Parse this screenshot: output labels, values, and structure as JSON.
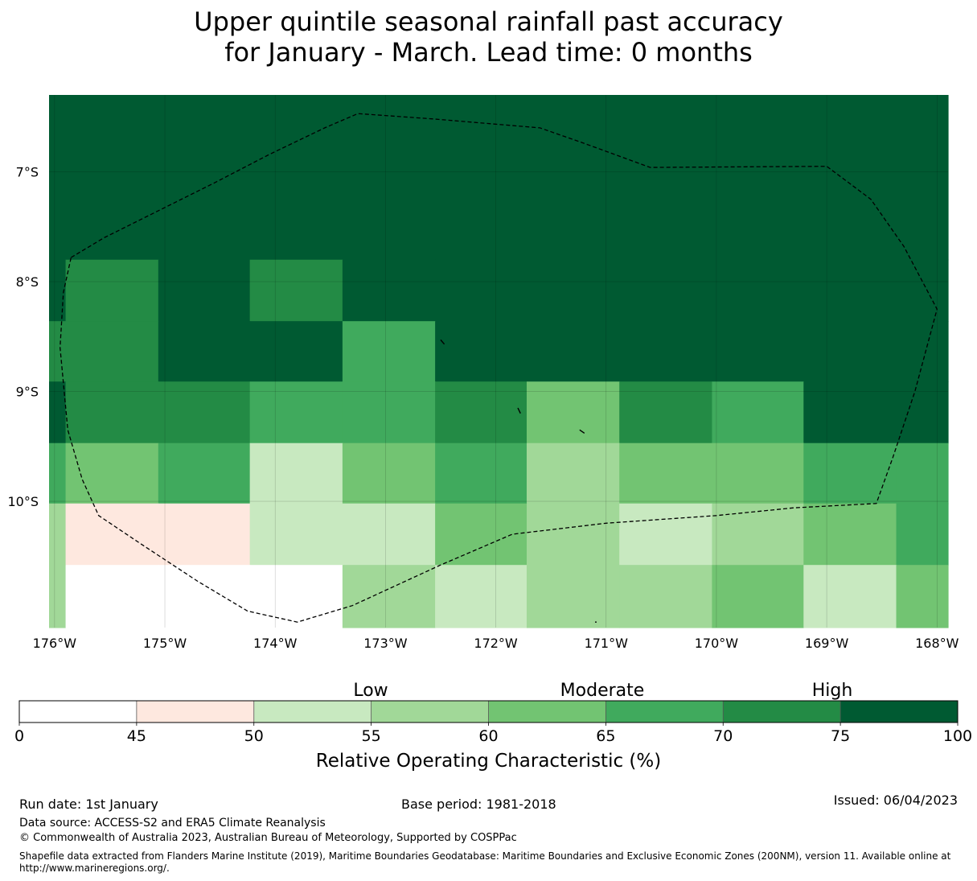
{
  "title": {
    "line1": "Upper quintile seasonal rainfall past accuracy",
    "line2": "for January - March. Lead time: 0 months"
  },
  "map": {
    "lon_range": [
      -176.05,
      -167.9
    ],
    "lat_range": [
      -11.15,
      -6.3
    ],
    "lon_ticks": [
      {
        "value": -176,
        "label": "176°W"
      },
      {
        "value": -175,
        "label": "175°W"
      },
      {
        "value": -174,
        "label": "174°W"
      },
      {
        "value": -173,
        "label": "173°W"
      },
      {
        "value": -172,
        "label": "172°W"
      },
      {
        "value": -171,
        "label": "171°W"
      },
      {
        "value": -170,
        "label": "170°W"
      },
      {
        "value": -169,
        "label": "169°W"
      },
      {
        "value": -168,
        "label": "168°W"
      }
    ],
    "lat_ticks": [
      {
        "value": -7,
        "label": "7°S"
      },
      {
        "value": -8,
        "label": "8°S"
      },
      {
        "value": -9,
        "label": "9°S"
      },
      {
        "value": -10,
        "label": "10°S"
      }
    ],
    "grid_lon_edges": [
      -176.05,
      -175.9,
      -175.06,
      -174.23,
      -173.39,
      -172.55,
      -171.72,
      -170.88,
      -170.04,
      -169.21,
      -168.37,
      -167.9
    ],
    "grid_lat_edges": [
      -6.3,
      -7.8,
      -8.36,
      -8.91,
      -9.47,
      -10.02,
      -10.58,
      -11.15
    ],
    "grid_rows_roc": [
      [
        80,
        80,
        80,
        80,
        80,
        80,
        80,
        80,
        80,
        80,
        80
      ],
      [
        80,
        72,
        80,
        72,
        80,
        80,
        80,
        80,
        80,
        80,
        80
      ],
      [
        72,
        72,
        80,
        80,
        67,
        80,
        80,
        80,
        80,
        80,
        80
      ],
      [
        80,
        72,
        72,
        67,
        67,
        72,
        62,
        72,
        67,
        80,
        80
      ],
      [
        67,
        62,
        67,
        52,
        62,
        67,
        57,
        62,
        62,
        67,
        67
      ],
      [
        57,
        47,
        47,
        52,
        52,
        62,
        57,
        52,
        57,
        62,
        67
      ],
      [
        57,
        0,
        0,
        0,
        57,
        52,
        57,
        57,
        62,
        52,
        62
      ]
    ],
    "eez_boundary": [
      [
        -175.85,
        -7.78
      ],
      [
        -175.55,
        -7.6
      ],
      [
        -175.05,
        -7.35
      ],
      [
        -174.55,
        -7.1
      ],
      [
        -174.05,
        -6.84
      ],
      [
        -173.55,
        -6.6
      ],
      [
        -173.25,
        -6.47
      ],
      [
        -172.55,
        -6.52
      ],
      [
        -171.6,
        -6.6
      ],
      [
        -171.2,
        -6.74
      ],
      [
        -170.6,
        -6.96
      ],
      [
        -169.0,
        -6.95
      ],
      [
        -168.6,
        -7.25
      ],
      [
        -168.3,
        -7.68
      ],
      [
        -168.0,
        -8.25
      ],
      [
        -168.2,
        -9.0
      ],
      [
        -168.4,
        -9.6
      ],
      [
        -168.55,
        -10.02
      ],
      [
        -169.3,
        -10.06
      ],
      [
        -170.0,
        -10.13
      ],
      [
        -171.0,
        -10.2
      ],
      [
        -171.85,
        -10.3
      ],
      [
        -172.5,
        -10.58
      ],
      [
        -173.3,
        -10.95
      ],
      [
        -173.8,
        -11.1
      ],
      [
        -174.25,
        -11.0
      ],
      [
        -174.7,
        -10.73
      ],
      [
        -175.2,
        -10.4
      ],
      [
        -175.6,
        -10.13
      ],
      [
        -175.75,
        -9.8
      ],
      [
        -175.88,
        -9.35
      ],
      [
        -175.95,
        -8.6
      ],
      [
        -175.92,
        -8.1
      ],
      [
        -175.85,
        -7.78
      ]
    ],
    "islands": [
      [
        [
          -172.5,
          -8.53
        ],
        [
          -172.47,
          -8.57
        ]
      ],
      [
        [
          -171.8,
          -9.15
        ],
        [
          -171.78,
          -9.2
        ]
      ],
      [
        [
          -171.24,
          -9.35
        ],
        [
          -171.2,
          -9.38
        ]
      ],
      [
        [
          -171.1,
          -11.1
        ],
        [
          -171.09,
          -11.1
        ]
      ]
    ]
  },
  "colorbar": {
    "category_labels": [
      "Low",
      "Moderate",
      "High"
    ],
    "ticks": [
      "0",
      "45",
      "50",
      "55",
      "60",
      "65",
      "70",
      "75",
      "100"
    ],
    "bounds": [
      0,
      45,
      50,
      55,
      60,
      65,
      70,
      75,
      100
    ],
    "colors": [
      "#ffffff",
      "#fee8df",
      "#c8e9c0",
      "#a1d898",
      "#72c472",
      "#40aa5d",
      "#238b45",
      "#005a32"
    ],
    "label": "Relative Operating Characteristic (%)"
  },
  "footer": {
    "run_date": "Run date: 1st January",
    "base_period": "Base period: 1981-2018",
    "issued": "Issued: 06/04/2023",
    "data_source": "Data source: ACCESS-S2 and ERA5 Climate Reanalysis",
    "copyright": "© Commonwealth of Australia 2023, Australian Bureau of Meteorology, Supported by COSPPac",
    "shapefile": "Shapefile data extracted from Flanders Marine Institute (2019), Maritime Boundaries Geodatabase: Maritime Boundaries and Exclusive Economic Zones (200NM), version 11. Available online at http://www.marineregions.org/."
  }
}
